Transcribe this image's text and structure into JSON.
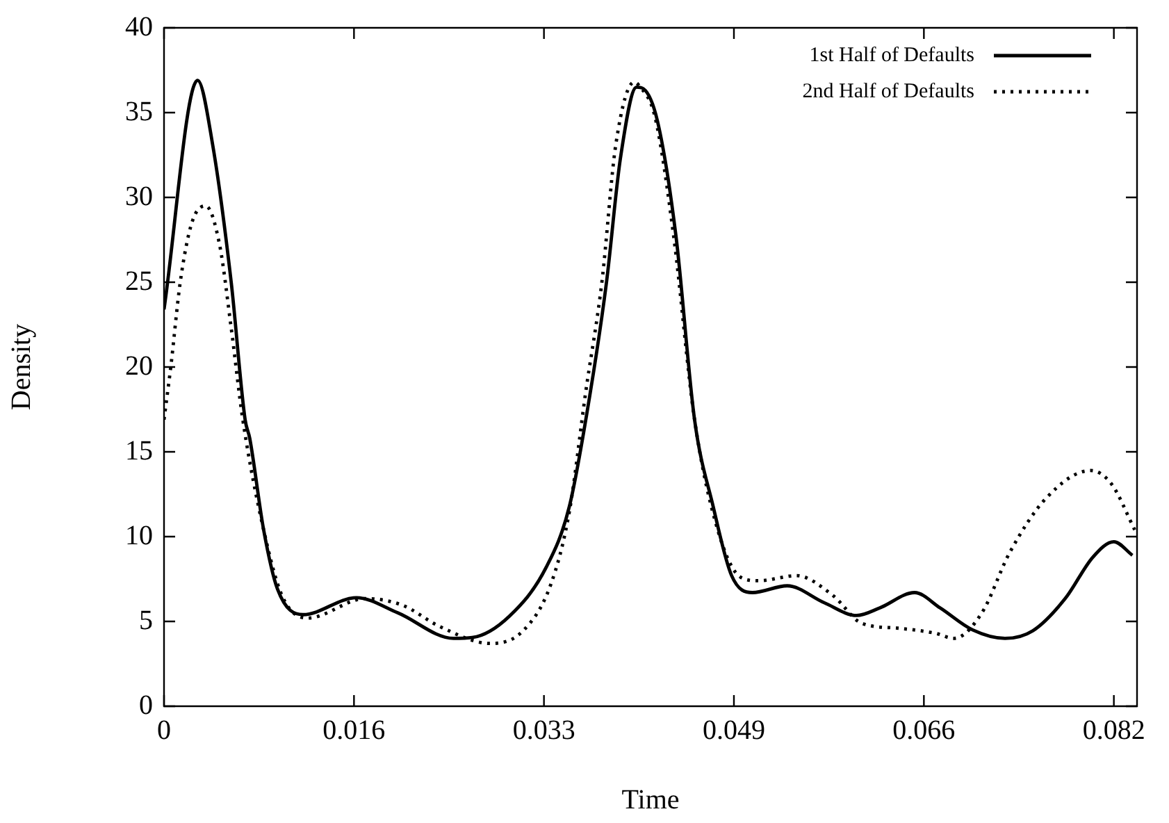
{
  "chart_data": {
    "type": "line",
    "xlabel": "Time",
    "ylabel": "Density",
    "xlim": [
      0,
      0.084
    ],
    "ylim": [
      0,
      40
    ],
    "xticks": [
      0,
      {
        "value": 0.0164,
        "label": "0.016"
      },
      {
        "value": 0.0328,
        "label": "0.033"
      },
      {
        "value": 0.0492,
        "label": "0.049"
      },
      {
        "value": 0.0656,
        "label": "0.066"
      },
      {
        "value": 0.082,
        "label": "0.082"
      }
    ],
    "yticks": [
      0,
      5,
      10,
      15,
      20,
      25,
      30,
      35,
      40
    ],
    "legend": "top right",
    "grid": false,
    "marker": "none",
    "series": [
      {
        "name": "1st Half of Defaults",
        "color": "#000000",
        "line_style": "solid",
        "x": [
          0,
          0.0029,
          0.0042,
          0.0058,
          0.007,
          0.0074,
          0.0086,
          0.0098,
          0.012,
          0.0166,
          0.0202,
          0.025,
          0.0266,
          0.0298,
          0.033,
          0.035,
          0.0368,
          0.0382,
          0.0394,
          0.0408,
          0.0414,
          0.0426,
          0.0442,
          0.0458,
          0.0474,
          0.049,
          0.0508,
          0.0538,
          0.057,
          0.0598,
          0.0618,
          0.0648,
          0.067,
          0.0698,
          0.0726,
          0.075,
          0.0778,
          0.0802,
          0.082,
          0.0836
        ],
        "values": [
          23.4,
          36.9,
          33.1,
          25.0,
          16.9,
          15.8,
          10.4,
          6.9,
          5.4,
          6.4,
          5.5,
          4.0,
          4.05,
          5.3,
          8.2,
          11.8,
          18.5,
          25.0,
          32.3,
          36.5,
          36.4,
          34.5,
          27.7,
          16.9,
          11.8,
          7.7,
          6.7,
          7.1,
          6.1,
          5.35,
          5.8,
          6.7,
          5.8,
          4.5,
          4.0,
          4.45,
          6.35,
          8.8,
          9.7,
          8.9
        ]
      },
      {
        "name": "2nd Half of Defaults",
        "color": "#000000",
        "line_style": "dotted",
        "x": [
          0,
          0.0006,
          0.0014,
          0.0024,
          0.0036,
          0.0048,
          0.0058,
          0.0068,
          0.0086,
          0.0102,
          0.0124,
          0.0174,
          0.0206,
          0.0238,
          0.0282,
          0.031,
          0.0334,
          0.035,
          0.0364,
          0.0378,
          0.039,
          0.0406,
          0.041,
          0.0424,
          0.044,
          0.0458,
          0.0478,
          0.0498,
          0.0514,
          0.0546,
          0.0578,
          0.0602,
          0.0634,
          0.0666,
          0.0682,
          0.0706,
          0.073,
          0.0762,
          0.08,
          0.0818,
          0.0838
        ],
        "values": [
          16.9,
          20.1,
          25.0,
          28.5,
          29.5,
          27.2,
          22.3,
          16.9,
          10.4,
          6.5,
          5.2,
          6.35,
          5.95,
          4.7,
          3.7,
          4.45,
          7.2,
          11.5,
          18.5,
          25.0,
          33.1,
          36.8,
          36.6,
          34.7,
          27.7,
          16.9,
          10.4,
          7.6,
          7.4,
          7.7,
          6.5,
          4.9,
          4.6,
          4.3,
          4.0,
          5.5,
          9.05,
          12.3,
          13.9,
          13.1,
          10.4
        ]
      }
    ]
  }
}
